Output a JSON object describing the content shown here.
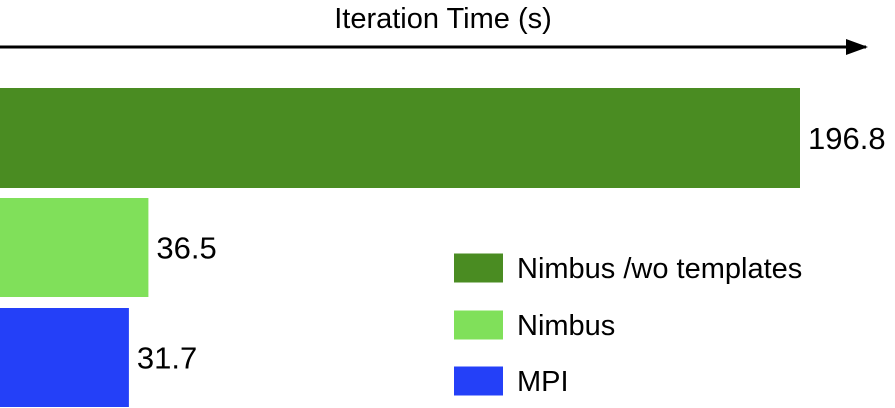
{
  "chart_data": {
    "type": "bar",
    "orientation": "horizontal",
    "xlabel": "Iteration Time (s)",
    "categories": [
      "Nimbus /wo templates",
      "Nimbus",
      "MPI"
    ],
    "values": [
      196.8,
      36.5,
      31.7
    ],
    "value_labels": [
      "196.8",
      "36.5",
      "31.7"
    ],
    "colors": [
      "#4a8c22",
      "#80e05a",
      "#2440f8"
    ],
    "xlim": [
      0,
      200
    ],
    "grid": false,
    "legend": {
      "position": "bottom-right",
      "entries": [
        {
          "label": "Nimbus /wo templates",
          "color": "#4a8c22"
        },
        {
          "label": "Nimbus",
          "color": "#80e05a"
        },
        {
          "label": "MPI",
          "color": "#2440f8"
        }
      ]
    }
  }
}
